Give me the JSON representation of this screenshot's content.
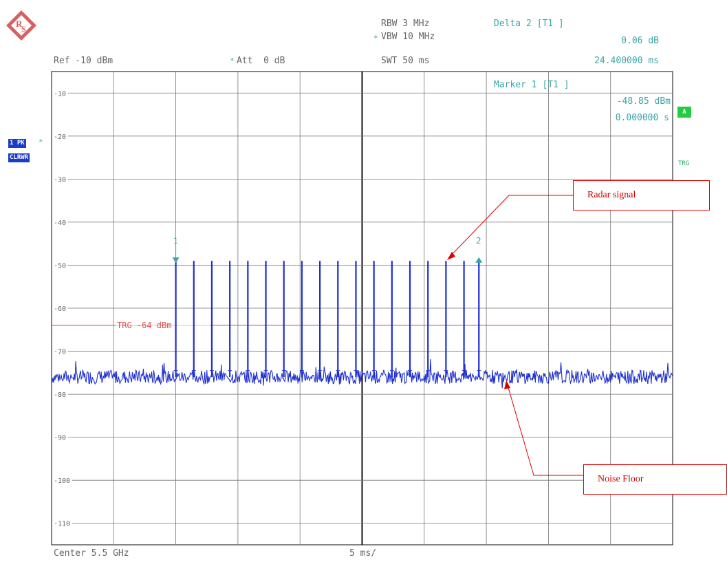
{
  "header": {
    "ref_level": "Ref -10 dBm",
    "att_prefix": "*",
    "att": "Att  0 dB",
    "rbw": "RBW 3 MHz",
    "vbw_prefix": "*",
    "vbw": "VBW 10 MHz",
    "swt": "SWT 50 ms",
    "delta_title": "Delta 2 [T1 ]",
    "delta_value": "0.06 dB",
    "delta_time": "24.400000 ms"
  },
  "marker": {
    "title": "Marker 1 [T1 ]",
    "value": "-48.85 dBm",
    "time": "0.000000 s"
  },
  "side": {
    "trace_label_1": "1 PK",
    "trace_label_2": "CLRWR",
    "trace_star": "*",
    "badge_a": "A",
    "trg": "TRG"
  },
  "footer": {
    "center": "Center 5.5 GHz",
    "span": "5 ms/"
  },
  "trigger_line": {
    "label": "TRG -64 dBm",
    "level": -64,
    "color": "#e05050"
  },
  "annotations": {
    "radar": "Radar signal",
    "noise": "Noise Floor"
  },
  "colors": {
    "trace": "#1e2fd0",
    "grid": "#333333",
    "teal": "#3aa5a5",
    "annotation": "#e00000"
  },
  "chart_data": {
    "type": "line",
    "title": "",
    "xlabel": "",
    "ylabel": "",
    "ylim": [
      -115,
      -10
    ],
    "y_ticks": [
      -10,
      -20,
      -30,
      -40,
      -50,
      -60,
      -70,
      -80,
      -90,
      -100,
      -110
    ],
    "x_range_ms": [
      0,
      50
    ],
    "x_divisions": 10,
    "noise_floor_dbm": -76,
    "pulse_peak_dbm": -49,
    "pulse_times_ms": [
      10.0,
      11.45,
      12.9,
      14.35,
      15.8,
      17.25,
      18.7,
      20.15,
      21.6,
      23.05,
      24.5,
      25.95,
      27.4,
      28.85,
      30.3,
      31.75,
      33.2,
      34.4
    ],
    "markers": [
      {
        "label": "1",
        "time_ms": 0.0,
        "level_dbm": -48.85
      },
      {
        "label": "2",
        "time_ms": 24.4,
        "level_dbm": -48.79
      }
    ]
  }
}
